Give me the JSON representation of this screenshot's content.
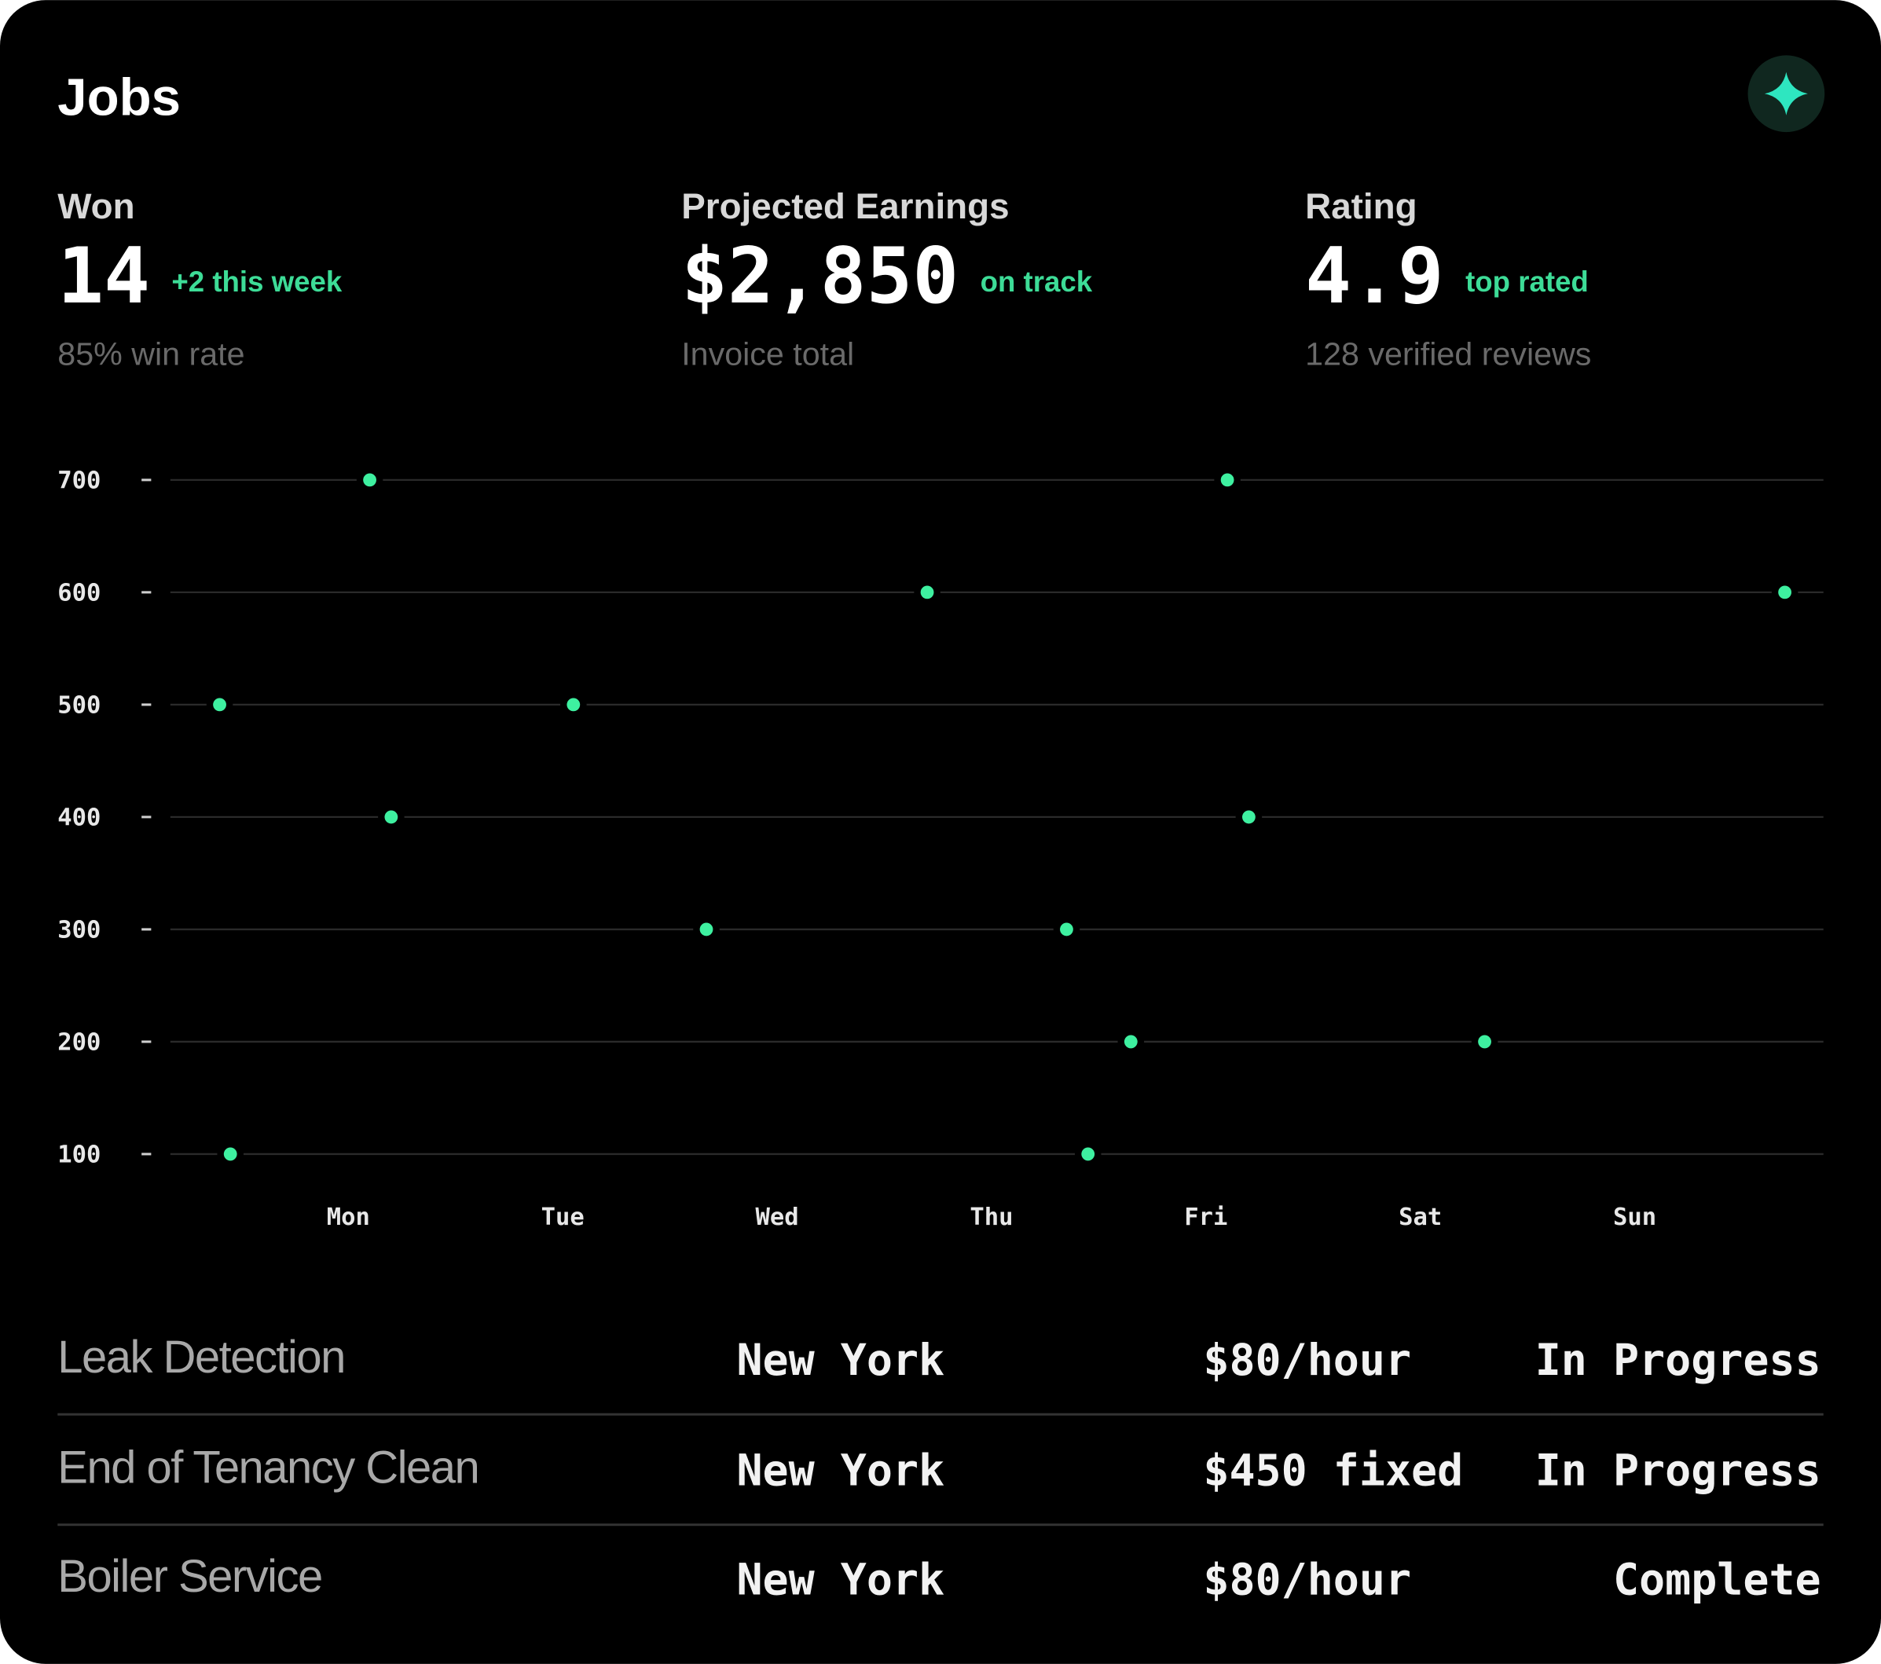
{
  "header": {
    "title": "Jobs"
  },
  "stats": [
    {
      "label": "Won",
      "value": "14",
      "delta": "+2 this week",
      "note": "85% win rate"
    },
    {
      "label": "Projected Earnings",
      "value": "$2,850",
      "delta": "on track",
      "note": "Invoice total"
    },
    {
      "label": "Rating",
      "value": "4.9",
      "delta": "top rated",
      "note": "128 verified reviews"
    }
  ],
  "chart_data": {
    "type": "range",
    "color": "#19d3cf",
    "dot_color": "#3ef0a0",
    "grid": true,
    "bars": [
      {
        "y": 700,
        "start": 0.1,
        "end": 4.1
      },
      {
        "y": 600,
        "start": 2.7,
        "end": 6.7
      },
      {
        "y": 500,
        "start": -0.6,
        "end": 1.05
      },
      {
        "y": 400,
        "start": 0.2,
        "end": 4.2
      },
      {
        "y": 300,
        "start": 1.67,
        "end": 3.35
      },
      {
        "y": 200,
        "start": 3.65,
        "end": 5.3
      },
      {
        "y": 100,
        "start": -0.55,
        "end": 3.45
      }
    ],
    "ylim": [
      100,
      700
    ],
    "yticks": [
      100,
      200,
      300,
      400,
      500,
      600,
      700
    ],
    "xlim": [
      -0.83,
      6.88
    ],
    "xticks": [
      {
        "value": 0,
        "label": "Mon"
      },
      {
        "value": 1,
        "label": "Tue"
      },
      {
        "value": 2,
        "label": "Wed"
      },
      {
        "value": 3,
        "label": "Thu"
      },
      {
        "value": 4,
        "label": "Fri"
      },
      {
        "value": 5,
        "label": "Sat"
      },
      {
        "value": 6,
        "label": "Sun"
      }
    ]
  },
  "table": {
    "rows": [
      [
        "Leak Detection",
        "New York",
        "$80/hour",
        "In Progress"
      ],
      [
        "End of Tenancy Clean",
        "New York",
        "$450 fixed",
        "In Progress"
      ],
      [
        "Boiler Service",
        "New York",
        "$80/hour",
        "Complete"
      ]
    ]
  }
}
